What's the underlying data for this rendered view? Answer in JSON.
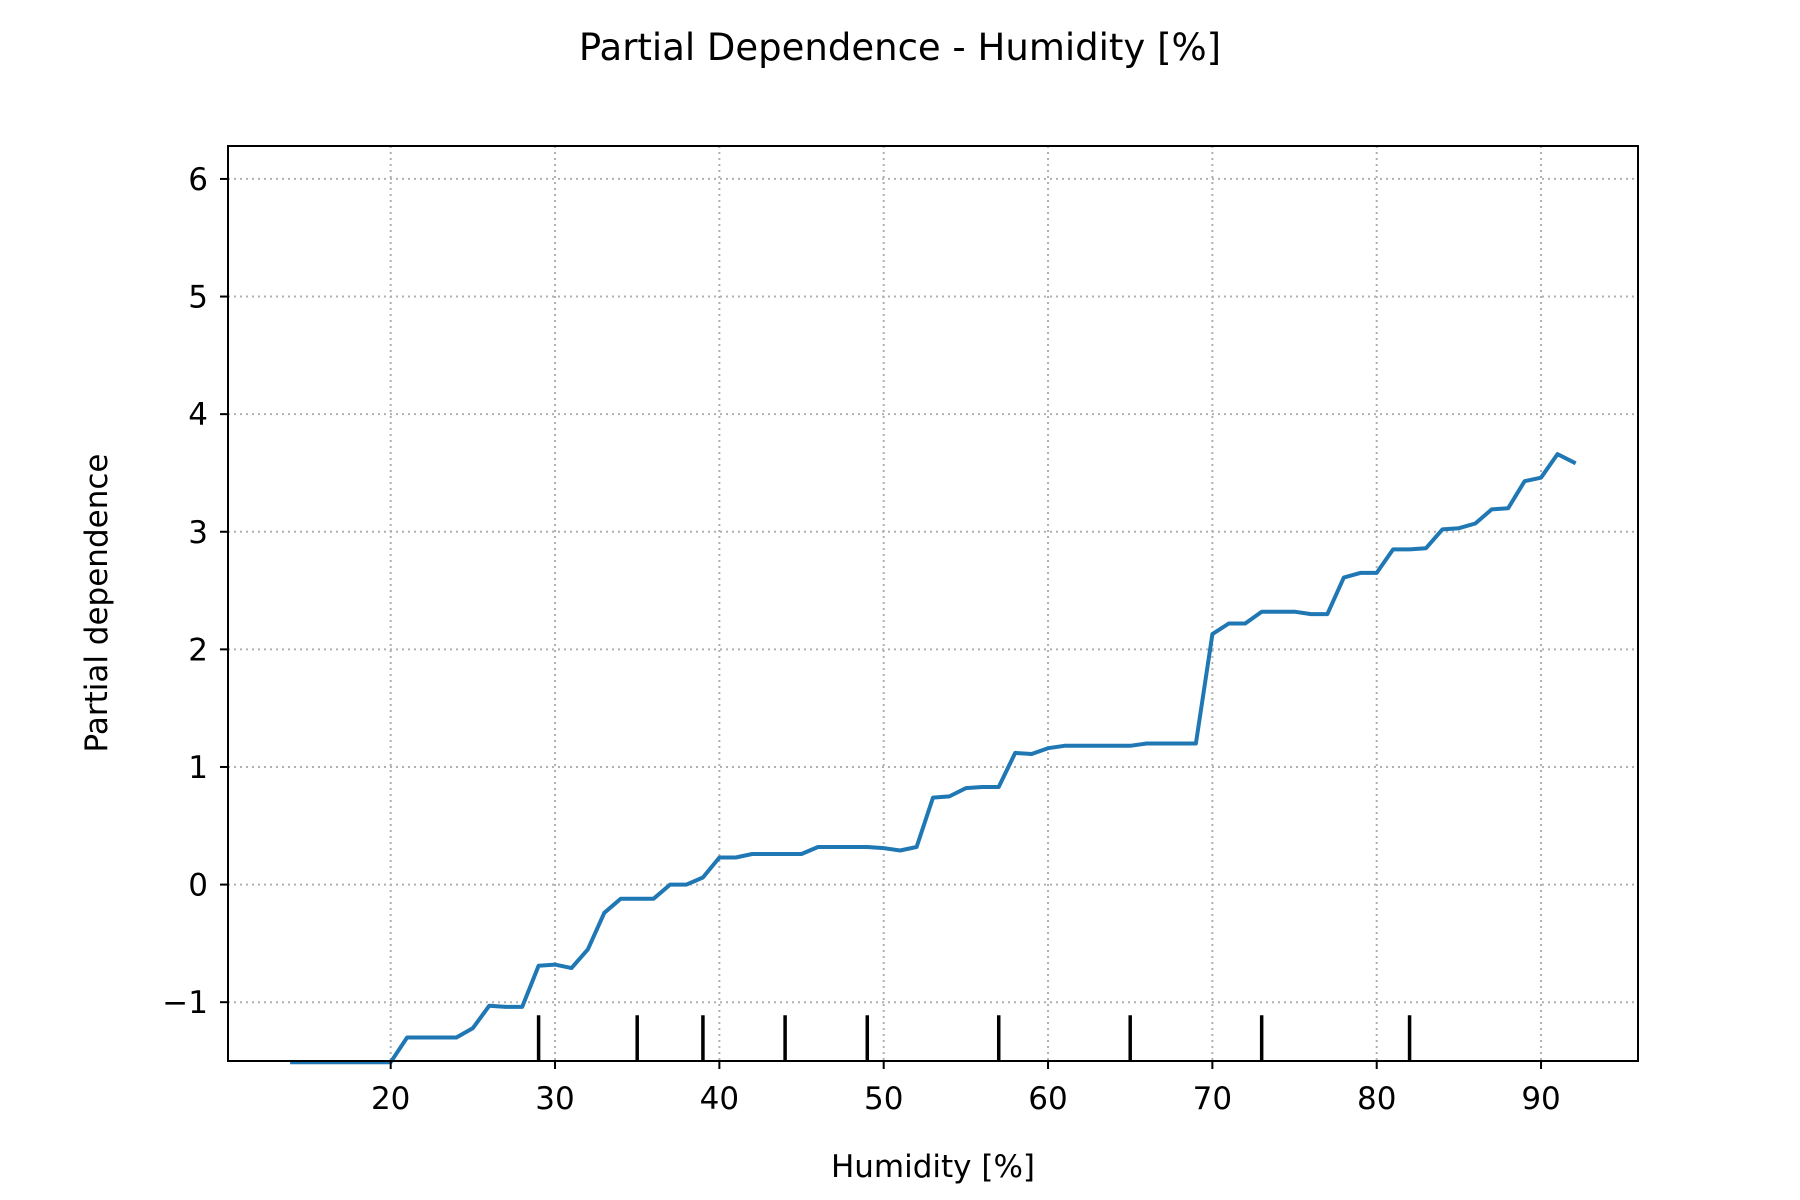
{
  "chart_data": {
    "type": "line",
    "title": "Partial Dependence - Humidity [%]",
    "xlabel": "Humidity [%]",
    "ylabel": "Partial dependence",
    "xlim": [
      10.1,
      95.9
    ],
    "ylim": [
      -1.5,
      6.28
    ],
    "xticks": [
      20,
      30,
      40,
      50,
      60,
      70,
      80,
      90
    ],
    "yticks": [
      -1,
      0,
      1,
      2,
      3,
      4,
      5,
      6
    ],
    "ytick_labels": [
      "−1",
      "0",
      "1",
      "2",
      "3",
      "4",
      "5",
      "6"
    ],
    "grid": true,
    "grid_style": "dotted",
    "line_color": "#1f77b4",
    "series": [
      {
        "x": [
          14,
          20,
          21,
          22,
          23,
          24,
          25,
          26,
          27,
          28,
          29,
          30,
          31,
          32,
          33,
          34,
          35,
          36,
          37,
          38,
          39,
          40,
          41,
          42,
          43,
          44,
          45,
          46,
          47,
          48,
          49,
          50,
          51,
          52,
          53,
          54,
          55,
          56,
          57,
          58,
          59,
          60,
          61,
          62,
          63,
          64,
          65,
          66,
          67,
          68,
          69,
          70,
          71,
          72,
          73,
          74,
          75,
          76,
          77,
          78,
          79,
          80,
          81,
          82,
          83,
          84,
          85,
          86,
          87,
          88,
          89,
          90,
          91,
          92
        ],
        "y": [
          -1.51,
          -1.51,
          -1.3,
          -1.3,
          -1.3,
          -1.3,
          -1.22,
          -1.03,
          -1.04,
          -1.04,
          -0.69,
          -0.68,
          -0.71,
          -0.55,
          -0.24,
          -0.12,
          -0.12,
          -0.12,
          0.0,
          0.0,
          0.06,
          0.23,
          0.23,
          0.26,
          0.26,
          0.26,
          0.26,
          0.32,
          0.32,
          0.32,
          0.32,
          0.31,
          0.29,
          0.32,
          0.74,
          0.75,
          0.82,
          0.83,
          0.83,
          1.12,
          1.11,
          1.16,
          1.18,
          1.18,
          1.18,
          1.18,
          1.18,
          1.2,
          1.2,
          1.2,
          1.2,
          2.13,
          2.22,
          2.22,
          2.32,
          2.32,
          2.32,
          2.3,
          2.3,
          2.61,
          2.65,
          2.65,
          2.85,
          2.85,
          2.86,
          3.02,
          3.03,
          3.07,
          3.19,
          3.2,
          3.43,
          3.46,
          3.66,
          3.59
        ]
      }
    ],
    "rug_deciles": [
      29,
      35,
      39,
      44,
      49,
      57,
      65,
      73,
      82
    ]
  }
}
